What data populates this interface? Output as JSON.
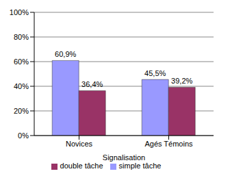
{
  "chart_data": {
    "type": "bar",
    "categories": [
      "Novices",
      "Agés Témoins"
    ],
    "x_label": "Signalisation",
    "series": [
      {
        "name": "simple tâche",
        "color": "#9999ff",
        "values": [
          60.9,
          45.5
        ],
        "value_labels": [
          "60,9%",
          "45,5%"
        ]
      },
      {
        "name": "double tâche",
        "color": "#993366",
        "values": [
          36.4,
          39.2
        ],
        "value_labels": [
          "36,4%",
          "39,2%"
        ]
      }
    ],
    "ylim": [
      0,
      100
    ],
    "yticks": [
      {
        "value": 0,
        "label": "0%"
      },
      {
        "value": 20,
        "label": "20%"
      },
      {
        "value": 40,
        "label": "40%"
      },
      {
        "value": 60,
        "label": "60%"
      },
      {
        "value": 80,
        "label": "80%"
      },
      {
        "value": 100,
        "label": "100%"
      }
    ],
    "grid": true,
    "legend": "bottom",
    "data_labels": true
  }
}
